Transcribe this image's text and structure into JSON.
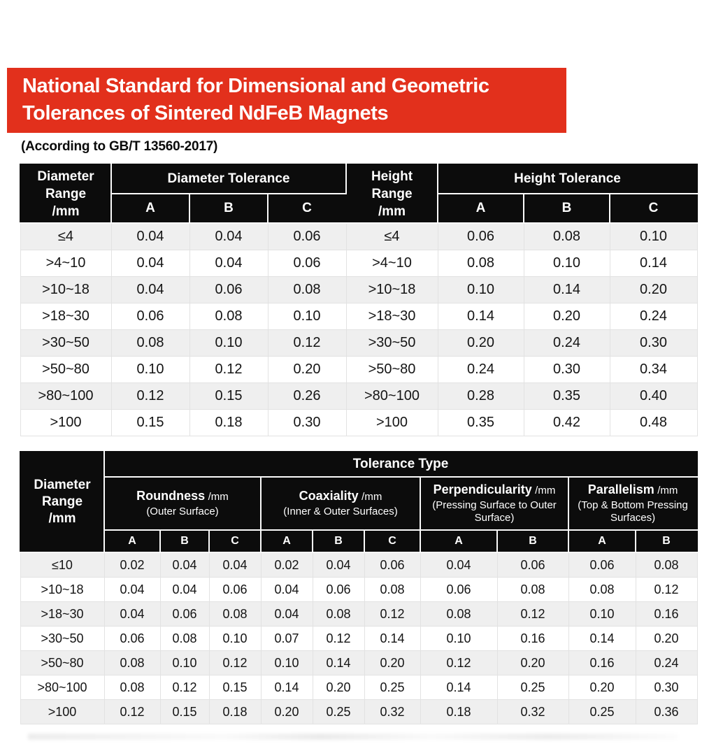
{
  "page": {
    "banner": {
      "title_line1": "National Standard for Dimensional and Geometric",
      "title_line2": "Tolerances of Sintered NdFeB Magnets",
      "bg_color": "#e2301c",
      "text_color": "#ffffff"
    },
    "subtitle": "(According to GB/T 13560-2017)",
    "colors": {
      "table_header_bg": "#0c0c0c",
      "row_alt": "#efefef",
      "row_base": "#ffffff",
      "grid_line": "#e2e2e2"
    }
  },
  "dimension_table": {
    "corner_left": "Diameter\nRange\n/mm",
    "group_left": "Diameter Tolerance",
    "corner_right": "Height\nRange\n/mm",
    "group_right": "Height Tolerance",
    "sub_headers": [
      "A",
      "B",
      "C",
      "A",
      "B",
      "C"
    ],
    "rows": [
      [
        "≤4",
        "0.04",
        "0.04",
        "0.06",
        "≤4",
        "0.06",
        "0.08",
        "0.10"
      ],
      [
        ">4~10",
        "0.04",
        "0.04",
        "0.06",
        ">4~10",
        "0.08",
        "0.10",
        "0.14"
      ],
      [
        ">10~18",
        "0.04",
        "0.06",
        "0.08",
        ">10~18",
        "0.10",
        "0.14",
        "0.20"
      ],
      [
        ">18~30",
        "0.06",
        "0.08",
        "0.10",
        ">18~30",
        "0.14",
        "0.20",
        "0.24"
      ],
      [
        ">30~50",
        "0.08",
        "0.10",
        "0.12",
        ">30~50",
        "0.20",
        "0.24",
        "0.30"
      ],
      [
        ">50~80",
        "0.10",
        "0.12",
        "0.20",
        ">50~80",
        "0.24",
        "0.30",
        "0.34"
      ],
      [
        ">80~100",
        "0.12",
        "0.15",
        "0.26",
        ">80~100",
        "0.28",
        "0.35",
        "0.40"
      ],
      [
        ">100",
        "0.15",
        "0.18",
        "0.30",
        ">100",
        "0.35",
        "0.42",
        "0.48"
      ]
    ]
  },
  "geometric_table": {
    "corner": "Diameter\nRange\n/mm",
    "top_header": "Tolerance Type",
    "groups": [
      {
        "name": "Roundness",
        "unit": "/mm",
        "note": "(Outer Surface)"
      },
      {
        "name": "Coaxiality",
        "unit": "/mm",
        "note": "(Inner & Outer Surfaces)"
      },
      {
        "name": "Perpendicularity",
        "unit": "/mm",
        "note": "(Pressing Surface to Outer Surface)"
      },
      {
        "name": "Parallelism",
        "unit": "/mm",
        "note": "(Top & Bottom Pressing Surfaces)"
      }
    ],
    "sub_headers": [
      "A",
      "B",
      "C",
      "A",
      "B",
      "C",
      "A",
      "B",
      "A",
      "B"
    ],
    "rows": [
      [
        "≤10",
        "0.02",
        "0.04",
        "0.04",
        "0.02",
        "0.04",
        "0.06",
        "0.04",
        "0.06",
        "0.06",
        "0.08"
      ],
      [
        ">10~18",
        "0.04",
        "0.04",
        "0.06",
        "0.04",
        "0.06",
        "0.08",
        "0.06",
        "0.08",
        "0.08",
        "0.12"
      ],
      [
        ">18~30",
        "0.04",
        "0.06",
        "0.08",
        "0.04",
        "0.08",
        "0.12",
        "0.08",
        "0.12",
        "0.10",
        "0.16"
      ],
      [
        ">30~50",
        "0.06",
        "0.08",
        "0.10",
        "0.07",
        "0.12",
        "0.14",
        "0.10",
        "0.16",
        "0.14",
        "0.20"
      ],
      [
        ">50~80",
        "0.08",
        "0.10",
        "0.12",
        "0.10",
        "0.14",
        "0.20",
        "0.12",
        "0.20",
        "0.16",
        "0.24"
      ],
      [
        ">80~100",
        "0.08",
        "0.12",
        "0.15",
        "0.14",
        "0.20",
        "0.25",
        "0.14",
        "0.25",
        "0.20",
        "0.30"
      ],
      [
        ">100",
        "0.12",
        "0.15",
        "0.18",
        "0.20",
        "0.25",
        "0.32",
        "0.18",
        "0.32",
        "0.25",
        "0.36"
      ]
    ]
  }
}
